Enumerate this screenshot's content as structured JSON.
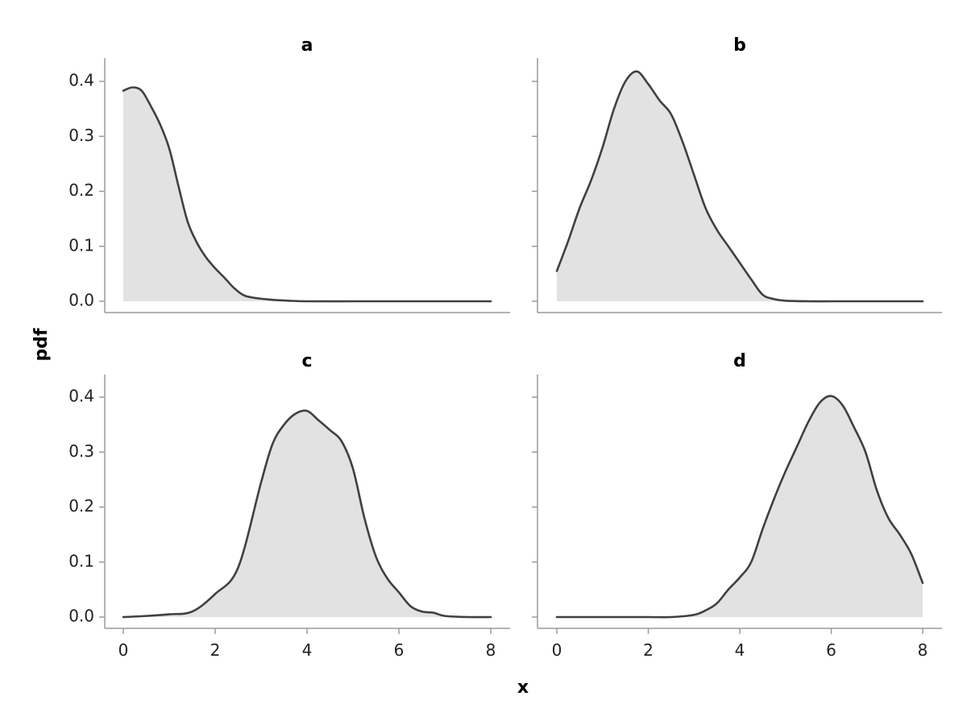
{
  "chart_data": {
    "type": "area",
    "xlabel": "x",
    "ylabel": "pdf",
    "xlim": [
      0,
      8
    ],
    "ylim": [
      0,
      0.4
    ],
    "xticks": [
      0,
      2,
      4,
      6,
      8
    ],
    "yticks": [
      0.0,
      0.1,
      0.2,
      0.3,
      0.4
    ],
    "ytick_labels": [
      "0.0",
      "0.1",
      "0.2",
      "0.3",
      "0.4"
    ],
    "xtick_labels": [
      "0",
      "2",
      "4",
      "6",
      "8"
    ],
    "grid": false,
    "colors": {
      "fill": "#e2e2e2",
      "line": "#404040"
    },
    "panels": [
      {
        "title": "a",
        "x": [
          0,
          0.2,
          0.4,
          0.6,
          0.8,
          1.0,
          1.2,
          1.4,
          1.6,
          1.8,
          2.0,
          2.2,
          2.4,
          2.6,
          2.8,
          3.2,
          3.6,
          4.0,
          5.0,
          6.0,
          7.0,
          8.0
        ],
        "y": [
          0.383,
          0.389,
          0.383,
          0.355,
          0.322,
          0.278,
          0.21,
          0.145,
          0.107,
          0.08,
          0.06,
          0.043,
          0.025,
          0.012,
          0.007,
          0.003,
          0.001,
          0.0,
          0.0,
          0.0,
          0.0,
          0.0
        ]
      },
      {
        "title": "b",
        "x": [
          0,
          0.25,
          0.5,
          0.75,
          1.0,
          1.25,
          1.5,
          1.75,
          2.0,
          2.25,
          2.5,
          2.75,
          3.0,
          3.25,
          3.5,
          3.75,
          4.0,
          4.25,
          4.5,
          4.75,
          5.0,
          5.5,
          6.0,
          7.0,
          8.0
        ],
        "y": [
          0.055,
          0.11,
          0.17,
          0.22,
          0.28,
          0.35,
          0.4,
          0.418,
          0.395,
          0.365,
          0.34,
          0.29,
          0.23,
          0.17,
          0.13,
          0.1,
          0.07,
          0.04,
          0.012,
          0.004,
          0.001,
          0.0,
          0.0,
          0.0,
          0.0
        ]
      },
      {
        "title": "c",
        "x": [
          0,
          0.5,
          1.0,
          1.5,
          2.0,
          2.5,
          3.0,
          3.25,
          3.5,
          3.75,
          4.0,
          4.25,
          4.5,
          4.75,
          5.0,
          5.25,
          5.5,
          5.75,
          6.0,
          6.25,
          6.5,
          6.75,
          7.0,
          7.5,
          8.0
        ],
        "y": [
          0.0,
          0.002,
          0.005,
          0.01,
          0.042,
          0.09,
          0.245,
          0.315,
          0.35,
          0.37,
          0.375,
          0.358,
          0.34,
          0.32,
          0.27,
          0.18,
          0.11,
          0.07,
          0.045,
          0.02,
          0.01,
          0.008,
          0.002,
          0.0,
          0.0
        ]
      },
      {
        "title": "d",
        "x": [
          0,
          1.0,
          2.0,
          2.5,
          3.0,
          3.25,
          3.5,
          3.75,
          4.0,
          4.25,
          4.5,
          4.75,
          5.0,
          5.25,
          5.5,
          5.75,
          6.0,
          6.25,
          6.5,
          6.75,
          7.0,
          7.25,
          7.5,
          7.75,
          8.0
        ],
        "y": [
          0.0,
          0.0,
          0.0,
          0.0,
          0.004,
          0.012,
          0.025,
          0.05,
          0.072,
          0.1,
          0.16,
          0.215,
          0.265,
          0.31,
          0.355,
          0.39,
          0.402,
          0.385,
          0.345,
          0.3,
          0.23,
          0.18,
          0.15,
          0.115,
          0.062
        ]
      }
    ]
  }
}
